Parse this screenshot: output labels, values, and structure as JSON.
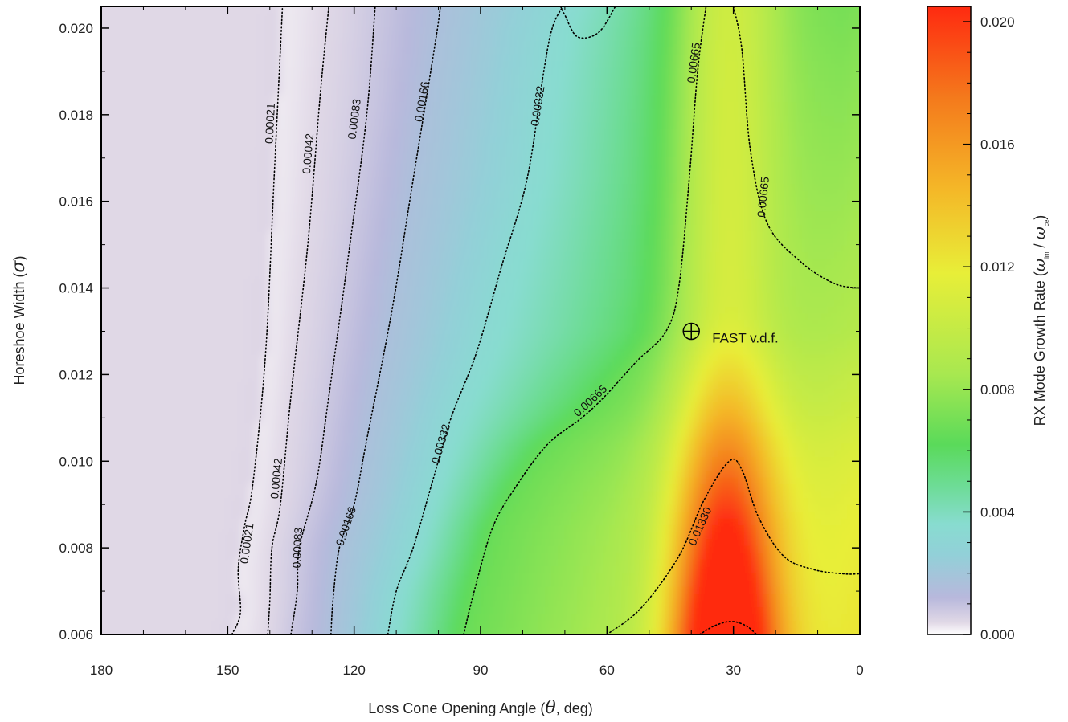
{
  "chart_data": {
    "type": "heatmap",
    "title": "",
    "xlabel_prefix": "Loss Cone Opening Angle (",
    "xlabel_symbol": "θ",
    "xlabel_suffix": ", deg)",
    "ylabel_prefix": "Horeshoe Width (",
    "ylabel_symbol": "σ",
    "ylabel_suffix": ")",
    "xlim": [
      180,
      0
    ],
    "ylim": [
      0.006,
      0.0205
    ],
    "x_ticks": [
      "180",
      "150",
      "120",
      "90",
      "60",
      "30",
      "0"
    ],
    "x_tick_values": [
      180,
      150,
      120,
      90,
      60,
      30,
      0
    ],
    "y_ticks": [
      "0.006",
      "0.008",
      "0.010",
      "0.012",
      "0.014",
      "0.016",
      "0.018",
      "0.020"
    ],
    "y_tick_values": [
      0.006,
      0.008,
      0.01,
      0.012,
      0.014,
      0.016,
      0.018,
      0.02
    ],
    "colorbar": {
      "label_prefix": "RX Mode Growth Rate (",
      "label_sym1": "ω",
      "label_sub1": "im",
      "label_sep": " / ",
      "label_sym2": "ω",
      "label_sub2": "ce",
      "label_suffix": ")",
      "ticks": [
        "0.000",
        "0.004",
        "0.008",
        "0.012",
        "0.016",
        "0.020"
      ],
      "tick_values": [
        0.0,
        0.004,
        0.008,
        0.012,
        0.016,
        0.02
      ],
      "range": [
        0.0,
        0.0205
      ],
      "stops": [
        {
          "v": 0.0,
          "color": "#ffffff"
        },
        {
          "v": 0.0004,
          "color": "#e0d8e6"
        },
        {
          "v": 0.0012,
          "color": "#b8b8dc"
        },
        {
          "v": 0.0026,
          "color": "#92d0d8"
        },
        {
          "v": 0.0036,
          "color": "#88dcd0"
        },
        {
          "v": 0.0048,
          "color": "#6edc98"
        },
        {
          "v": 0.0062,
          "color": "#5ada5a"
        },
        {
          "v": 0.0085,
          "color": "#a8e850"
        },
        {
          "v": 0.0118,
          "color": "#e8ee38"
        },
        {
          "v": 0.0145,
          "color": "#f4b828"
        },
        {
          "v": 0.0175,
          "color": "#f47a1c"
        },
        {
          "v": 0.0205,
          "color": "#ff2a10"
        }
      ]
    },
    "contours": [
      {
        "level": "0.00021",
        "labels": [
          {
            "x": 140,
            "y": 0.0178
          },
          {
            "x": 145.5,
            "y": 0.0081
          }
        ],
        "points": [
          [
            149,
            0.006
          ],
          [
            147,
            0.0065
          ],
          [
            147.5,
            0.0075
          ],
          [
            146,
            0.0085
          ],
          [
            144,
            0.0095
          ],
          [
            141,
            0.0125
          ],
          [
            139,
            0.0165
          ],
          [
            137,
            0.0205
          ]
        ]
      },
      {
        "level": "0.00042",
        "labels": [
          {
            "x": 131,
            "y": 0.0171
          },
          {
            "x": 138.5,
            "y": 0.0096
          }
        ],
        "points": [
          [
            140.5,
            0.006
          ],
          [
            140,
            0.0068
          ],
          [
            139.5,
            0.008
          ],
          [
            137.5,
            0.009
          ],
          [
            135,
            0.0115
          ],
          [
            131,
            0.015
          ],
          [
            128,
            0.0185
          ],
          [
            126,
            0.0205
          ]
        ]
      },
      {
        "level": "0.00083",
        "labels": [
          {
            "x": 120,
            "y": 0.0179
          },
          {
            "x": 133.5,
            "y": 0.008
          }
        ],
        "points": [
          [
            135,
            0.006
          ],
          [
            133.5,
            0.007
          ],
          [
            133,
            0.008
          ],
          [
            129,
            0.0095
          ],
          [
            126,
            0.0115
          ],
          [
            121,
            0.015
          ],
          [
            117,
            0.018
          ],
          [
            115,
            0.0205
          ]
        ]
      },
      {
        "level": "0.00166",
        "labels": [
          {
            "x": 104,
            "y": 0.0183
          },
          {
            "x": 122,
            "y": 0.0085
          }
        ],
        "points": [
          [
            125.5,
            0.006
          ],
          [
            125,
            0.0068
          ],
          [
            123.5,
            0.008
          ],
          [
            120,
            0.009
          ],
          [
            117,
            0.0105
          ],
          [
            111,
            0.0135
          ],
          [
            106,
            0.0165
          ],
          [
            101,
            0.0195
          ],
          [
            99.5,
            0.0205
          ]
        ]
      },
      {
        "level": "0.00332",
        "labels": [
          {
            "x": 76.5,
            "y": 0.0182
          },
          {
            "x": 99.5,
            "y": 0.0104
          }
        ],
        "points": [
          [
            112,
            0.006
          ],
          [
            110,
            0.007
          ],
          [
            106,
            0.008
          ],
          [
            101.5,
            0.0095
          ],
          [
            97,
            0.011
          ],
          [
            91,
            0.0125
          ],
          [
            85,
            0.0145
          ],
          [
            79,
            0.0165
          ],
          [
            75,
            0.019
          ],
          [
            73,
            0.02
          ],
          [
            70.5,
            0.0205
          ]
        ]
      },
      {
        "level": "0.00665",
        "labels": [
          {
            "x": 64,
            "y": 0.0114
          },
          {
            "x": 39.5,
            "y": 0.0192
          },
          {
            "x": 23,
            "y": 0.0161
          }
        ],
        "points": [
          [
            94,
            0.006
          ],
          [
            91.5,
            0.007
          ],
          [
            87,
            0.0085
          ],
          [
            81,
            0.0095
          ],
          [
            74,
            0.0104
          ],
          [
            66,
            0.011
          ],
          [
            60.5,
            0.0115
          ],
          [
            53,
            0.0123
          ],
          [
            46,
            0.013
          ],
          [
            43,
            0.014
          ],
          [
            40.5,
            0.0165
          ],
          [
            38.5,
            0.019
          ],
          [
            36.5,
            0.0205
          ]
        ]
      },
      {
        "level": "0.00665",
        "labels": [],
        "points": [
          [
            71,
            0.0205
          ],
          [
            70,
            0.0203
          ],
          [
            67,
            0.0198
          ],
          [
            62,
            0.0199
          ],
          [
            58,
            0.0205
          ]
        ]
      },
      {
        "level": "0.00665",
        "labels": [],
        "points": [
          [
            30,
            0.0205
          ],
          [
            28,
            0.0195
          ],
          [
            26,
            0.0172
          ],
          [
            22,
            0.0155
          ],
          [
            14,
            0.0146
          ],
          [
            6,
            0.0141
          ],
          [
            0,
            0.014
          ]
        ]
      },
      {
        "level": "0.01330",
        "labels": [
          {
            "x": 38,
            "y": 0.0085
          }
        ],
        "points": [
          [
            60,
            0.006
          ],
          [
            52,
            0.0066
          ],
          [
            43,
            0.0078
          ],
          [
            37,
            0.0091
          ],
          [
            31,
            0.01
          ],
          [
            28,
            0.0098
          ],
          [
            24,
            0.0087
          ],
          [
            18,
            0.0078
          ],
          [
            11,
            0.0075
          ],
          [
            4,
            0.0074
          ],
          [
            0,
            0.0074
          ]
        ]
      },
      {
        "level": "0.01330",
        "labels": [],
        "points": [
          [
            38,
            0.006
          ],
          [
            34.5,
            0.0062
          ],
          [
            30.5,
            0.0063
          ],
          [
            27,
            0.0062
          ],
          [
            24.5,
            0.006
          ]
        ]
      }
    ],
    "annotations": [
      {
        "text": "FAST v.d.f.",
        "x": 40,
        "y": 0.013,
        "marker": "circled-plus"
      }
    ],
    "grid": false,
    "legend": "colorbar-right"
  }
}
